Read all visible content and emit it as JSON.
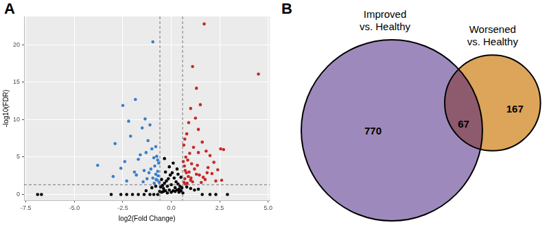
{
  "chart_data": [
    {
      "type": "scatter",
      "title": "A",
      "x_label": "log2(Fold Change)",
      "y_label": "-log10(FDR)",
      "xlim": [
        -7.6,
        5.1
      ],
      "xticks": [
        -7.5,
        {
          "value": -5,
          "label": "-5.0"
        },
        -2.5,
        {
          "value": 0,
          "label": "0.0"
        },
        2.5,
        {
          "value": 5,
          "label": "5.0"
        }
      ],
      "ylim": [
        -0.8,
        23.8
      ],
      "yticks": [
        0,
        5,
        10,
        15,
        20
      ],
      "grid": true,
      "reference_lines": {
        "x": [
          -0.585,
          0.585
        ],
        "y": [
          1.301
        ]
      },
      "series": [
        {
          "color": "#000000",
          "x": [
            -6.9,
            -6.7,
            -3.1,
            -2.6,
            -2.3,
            -2.0,
            -1.7,
            -1.4,
            -1.1,
            -0.9,
            -0.7,
            1.6,
            2.0,
            2.3,
            2.9,
            -0.5,
            -0.4,
            -0.3,
            -0.2,
            -0.1,
            0.0,
            0.1,
            0.2,
            0.3,
            0.4,
            0.5,
            -0.55,
            -0.45,
            -0.35,
            -0.25,
            -0.15,
            -0.05,
            0.05,
            0.15,
            0.25,
            0.35,
            0.45,
            0.55,
            -0.5,
            -0.3,
            -0.1,
            0.1,
            0.3,
            0.5,
            -0.4,
            -0.2,
            0.0,
            0.2,
            0.4,
            -1.0,
            -0.8,
            0.8,
            1.0,
            1.2,
            -1.3,
            1.4,
            -0.6,
            0.6,
            -0.35,
            0.35
          ],
          "values": [
            0,
            0,
            0,
            0,
            0,
            0,
            0,
            0,
            0,
            0,
            0,
            0,
            0,
            0,
            0,
            0.3,
            0.4,
            0.5,
            0.2,
            0.6,
            0.3,
            0.5,
            0.4,
            0.6,
            0.3,
            0.5,
            1.0,
            1.2,
            1.5,
            1.8,
            2.1,
            2.6,
            2.9,
            2.2,
            1.7,
            1.4,
            1.1,
            0.9,
            2.0,
            3.0,
            3.7,
            4.2,
            3.4,
            2.3,
            0.8,
            1.1,
            1.3,
            0.9,
            0.7,
            0.9,
            1.1,
            1.0,
            0.8,
            0.6,
            0.5,
            0.7,
            0.4,
            0.2,
            4.8,
            2.7
          ]
        },
        {
          "color": "#3a7fc9",
          "x": [
            -0.95,
            -1.35,
            -1.1,
            -2.5,
            -1.85,
            -2.9,
            -3.8,
            -2.2,
            -1.5,
            -2.1,
            -1.2,
            -0.8,
            -0.75,
            -0.7,
            -0.65,
            -0.9,
            -1.0,
            -1.3,
            -1.6,
            -1.7,
            -2.4,
            -2.6,
            -3.0,
            -1.4,
            -0.85,
            -1.05,
            -0.7,
            -0.8,
            -1.15,
            -0.95,
            -0.68,
            -0.72,
            -1.25,
            -1.8,
            -2.3,
            -0.88,
            -0.62,
            -1.45,
            -0.78,
            -1.9
          ],
          "values": [
            20.4,
            10.1,
            9.3,
            11.9,
            12.7,
            6.8,
            3.9,
            9.8,
            8.9,
            7.8,
            7.2,
            6.4,
            5.1,
            4.6,
            4.2,
            4.9,
            6.1,
            5.6,
            5.3,
            4.7,
            4.4,
            3.5,
            2.4,
            3.2,
            3.8,
            3.4,
            3.1,
            2.7,
            2.9,
            2.2,
            2.5,
            1.9,
            2.1,
            2.6,
            1.8,
            1.5,
            1.6,
            1.7,
            2.0,
            3.0
          ]
        },
        {
          "color": "#c62828",
          "x": [
            1.7,
            4.5,
            1.1,
            1.3,
            1.5,
            2.55,
            2.7,
            1.0,
            1.25,
            0.9,
            1.4,
            0.8,
            0.7,
            0.65,
            1.6,
            1.8,
            2.0,
            2.2,
            1.15,
            0.95,
            0.75,
            0.85,
            1.05,
            1.35,
            1.9,
            2.4,
            2.1,
            0.62,
            0.68,
            0.72,
            0.78,
            1.2,
            1.45,
            1.65,
            1.75,
            2.3,
            0.88,
            1.0,
            1.55,
            0.7,
            0.82,
            1.1,
            1.3,
            2.6,
            0.66,
            0.92,
            1.85,
            1.4,
            0.74,
            1.02
          ],
          "values": [
            22.8,
            16.1,
            17.1,
            14.2,
            12.0,
            6.1,
            6.0,
            11.5,
            10.2,
            9.6,
            8.7,
            8.1,
            7.4,
            6.6,
            7.0,
            5.8,
            5.2,
            4.3,
            6.3,
            5.5,
            5.0,
            4.6,
            4.1,
            3.9,
            3.6,
            3.3,
            2.8,
            4.4,
            3.8,
            3.2,
            2.9,
            3.4,
            2.6,
            2.3,
            2.0,
            1.8,
            2.4,
            1.9,
            1.6,
            2.1,
            1.5,
            1.7,
            2.7,
            1.9,
            1.6,
            3.0,
            2.9,
            5.6,
            1.4,
            2.2
          ]
        }
      ]
    },
    {
      "type": "venn",
      "title": "B",
      "sets": [
        {
          "label": [
            "Improved",
            "vs. Healthy"
          ],
          "color": "#9e89bd"
        },
        {
          "label": [
            "Worsened",
            "vs. Healthy"
          ],
          "color": "#dca55a"
        }
      ],
      "only_values": [
        770,
        167
      ],
      "overlap_value": 67
    }
  ]
}
